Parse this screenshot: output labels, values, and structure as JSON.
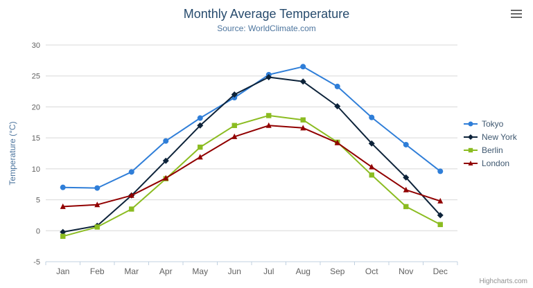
{
  "chart_data": {
    "type": "line",
    "title": "Monthly Average Temperature",
    "subtitle": "Source: WorldClimate.com",
    "categories": [
      "Jan",
      "Feb",
      "Mar",
      "Apr",
      "May",
      "Jun",
      "Jul",
      "Aug",
      "Sep",
      "Oct",
      "Nov",
      "Dec"
    ],
    "xlabel": "",
    "ylabel": "Temperature (°C)",
    "ylim": [
      -5,
      30
    ],
    "ytick_step": 5,
    "grid": true,
    "legend_position": "right",
    "series": [
      {
        "name": "Tokyo",
        "color": "#2f7ed8",
        "marker": "circle",
        "values": [
          7.0,
          6.9,
          9.5,
          14.5,
          18.2,
          21.5,
          25.2,
          26.5,
          23.3,
          18.3,
          13.9,
          9.6
        ]
      },
      {
        "name": "New York",
        "color": "#0d233a",
        "marker": "diamond",
        "values": [
          -0.2,
          0.8,
          5.7,
          11.3,
          17.0,
          22.0,
          24.8,
          24.1,
          20.1,
          14.1,
          8.6,
          2.5
        ]
      },
      {
        "name": "Berlin",
        "color": "#8bbc21",
        "marker": "square",
        "values": [
          -0.9,
          0.6,
          3.5,
          8.4,
          13.5,
          17.0,
          18.6,
          17.9,
          14.3,
          9.0,
          3.9,
          1.0
        ]
      },
      {
        "name": "London",
        "color": "#910000",
        "marker": "triangle",
        "values": [
          3.9,
          4.2,
          5.7,
          8.5,
          11.9,
          15.2,
          17.0,
          16.6,
          14.2,
          10.3,
          6.6,
          4.8
        ]
      }
    ],
    "credits": "Highcharts.com"
  },
  "theme": {
    "background": "#ffffff",
    "title_color": "#274b6d",
    "subtitle_color": "#4d759e",
    "axis_label_color": "#606060",
    "axis_title_color": "#4d759e",
    "grid_color": "#d8d8d8",
    "axis_line_color": "#c0d0e0",
    "legend_text_color": "#3e576f",
    "credits_color": "#909090",
    "menu_icon_color": "#666666"
  },
  "export_menu": {
    "icon": "hamburger-menu-icon"
  }
}
